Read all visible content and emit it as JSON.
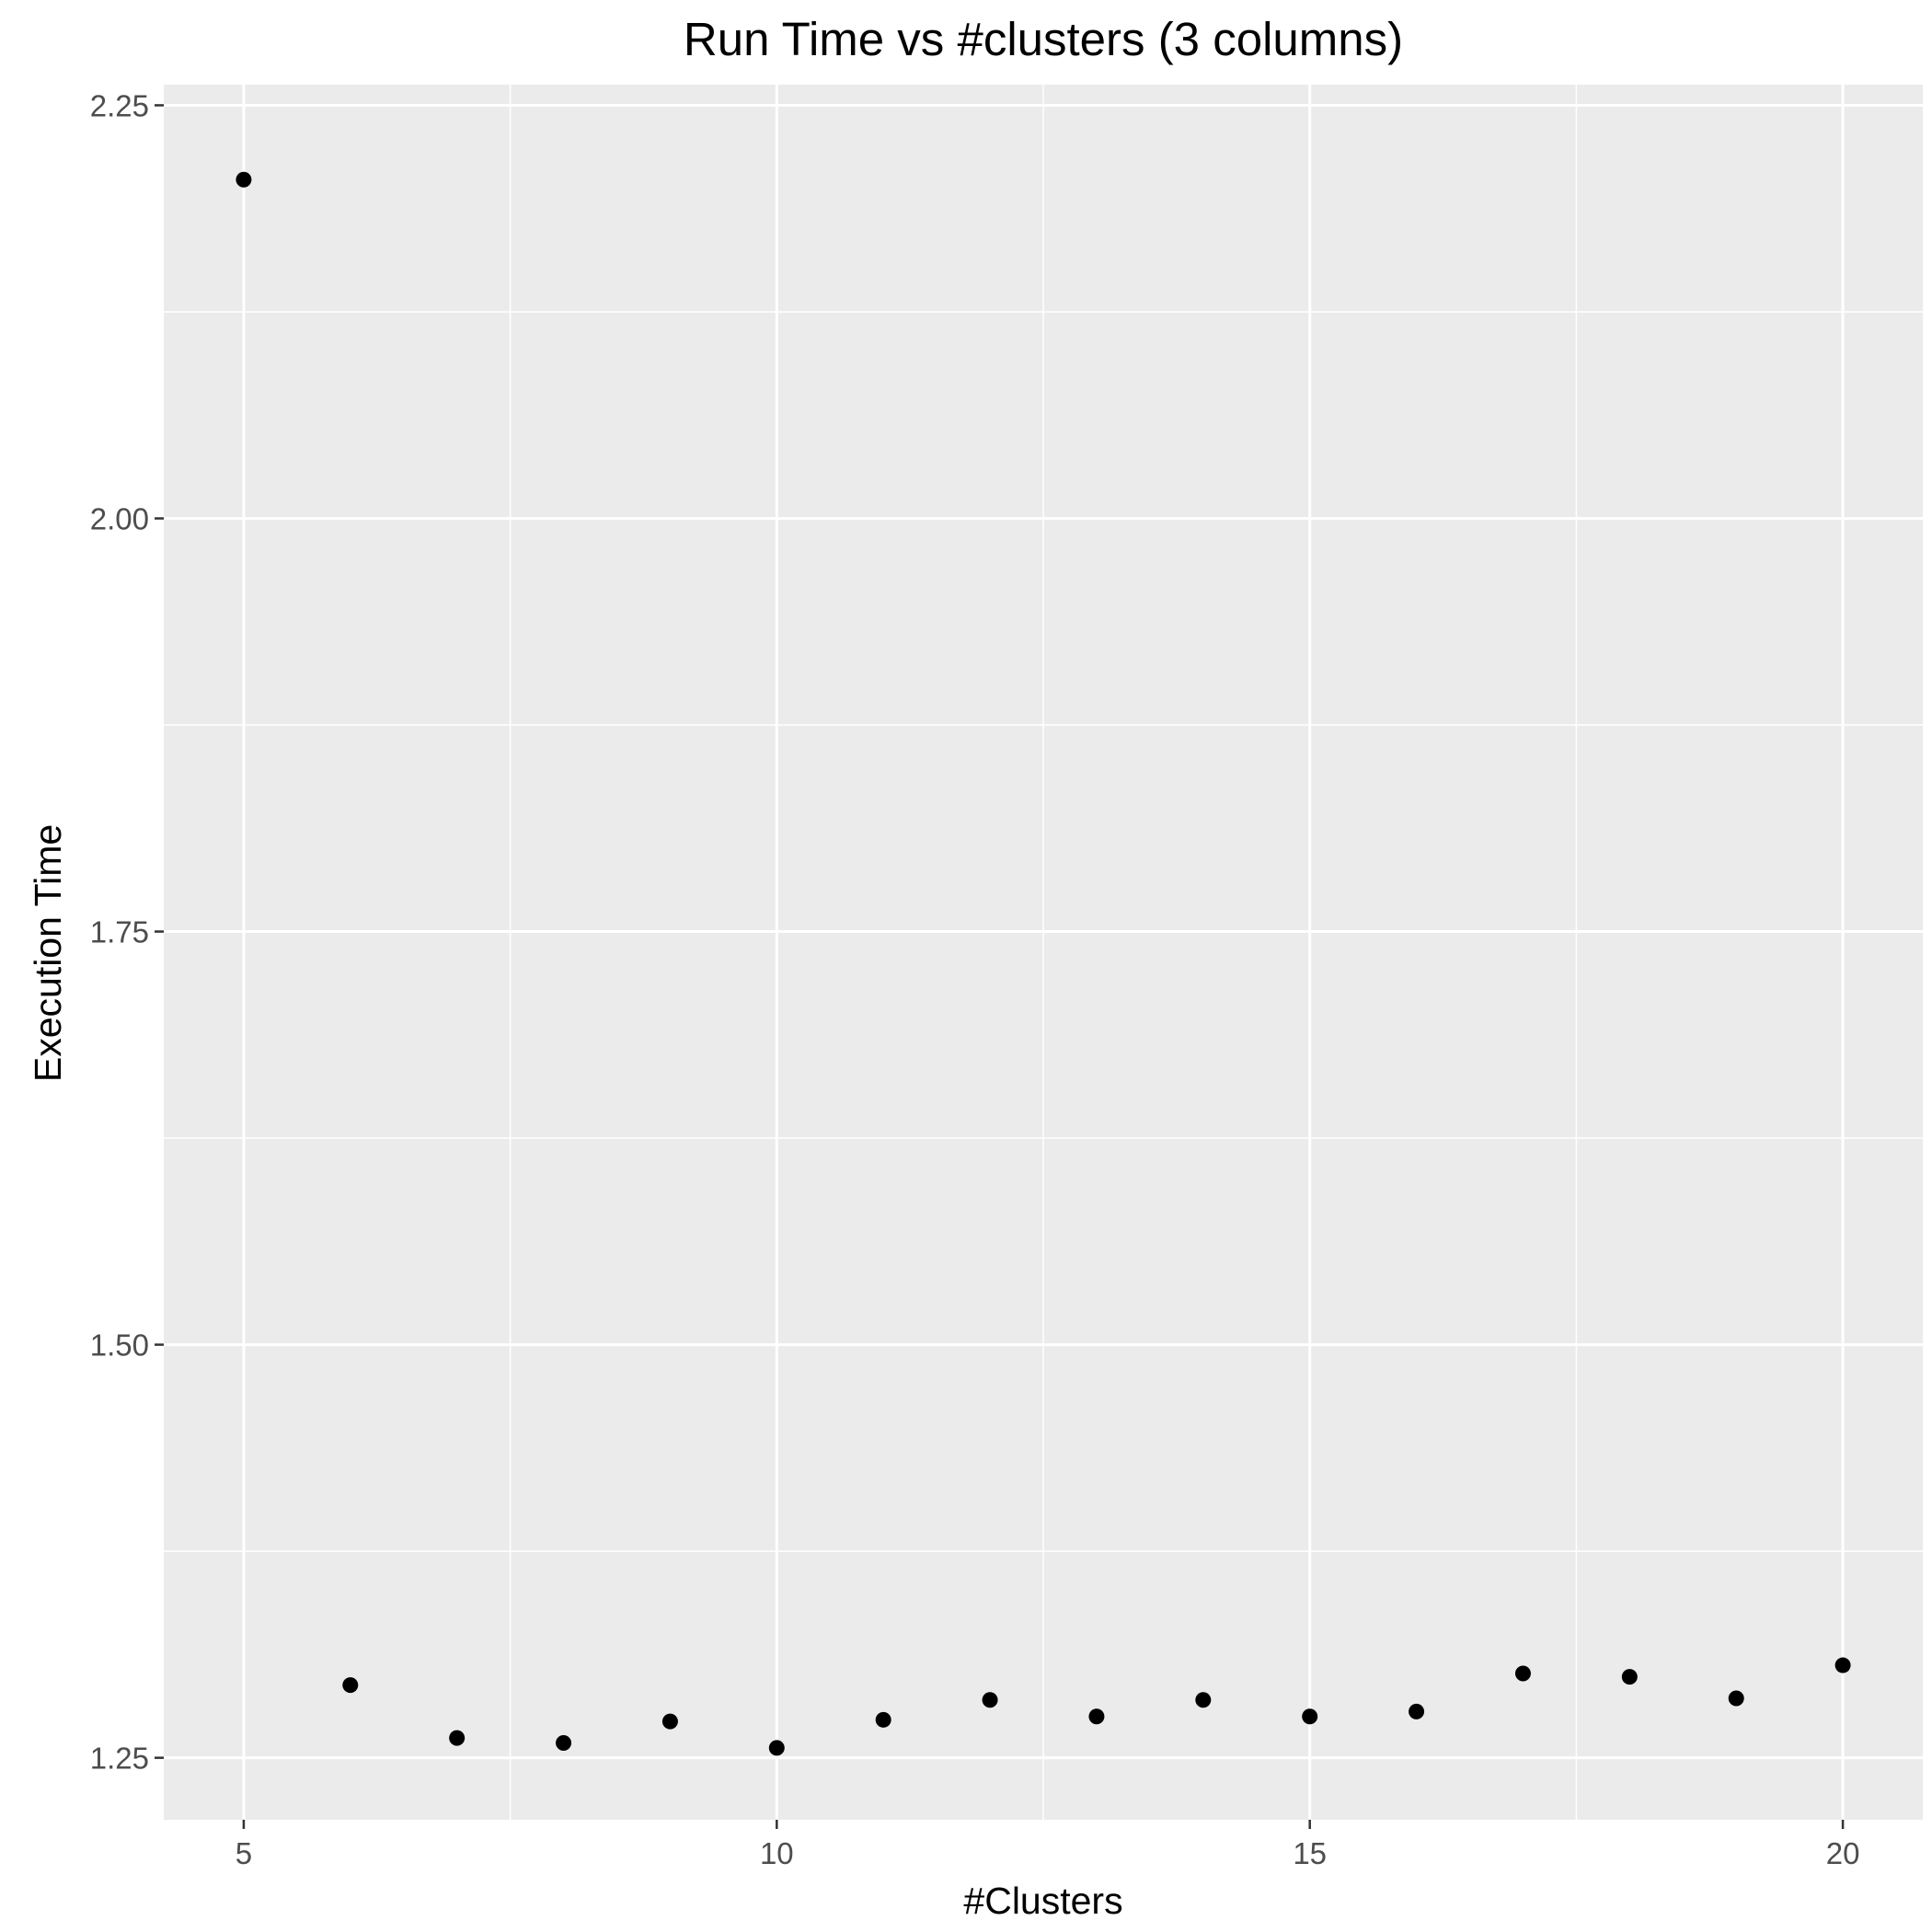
{
  "chart_data": {
    "type": "scatter",
    "title": "Run Time vs #clusters (3 columns)",
    "xlabel": "#Clusters",
    "ylabel": "Execution Time",
    "xlim": [
      4.25,
      20.75
    ],
    "ylim": [
      1.2125,
      2.2625
    ],
    "x_ticks": [
      5,
      10,
      15,
      20
    ],
    "x_tick_labels": [
      "5",
      "10",
      "15",
      "20"
    ],
    "x_minor_ticks": [
      7.5,
      12.5,
      17.5
    ],
    "y_ticks": [
      1.25,
      1.5,
      1.75,
      2.0,
      2.25
    ],
    "y_tick_labels": [
      "1.25",
      "1.50",
      "1.75",
      "2.00",
      "2.25"
    ],
    "y_minor_ticks": [
      1.375,
      1.625,
      1.875,
      2.125
    ],
    "grid": true,
    "panel_color": "#ebebeb",
    "grid_color": "#ffffff",
    "point_color": "#000000",
    "points": [
      {
        "x": 5,
        "y": 2.205
      },
      {
        "x": 6,
        "y": 1.294
      },
      {
        "x": 7,
        "y": 1.262
      },
      {
        "x": 8,
        "y": 1.259
      },
      {
        "x": 9,
        "y": 1.272
      },
      {
        "x": 10,
        "y": 1.256
      },
      {
        "x": 11,
        "y": 1.273
      },
      {
        "x": 12,
        "y": 1.285
      },
      {
        "x": 13,
        "y": 1.275
      },
      {
        "x": 14,
        "y": 1.285
      },
      {
        "x": 15,
        "y": 1.275
      },
      {
        "x": 16,
        "y": 1.278
      },
      {
        "x": 17,
        "y": 1.301
      },
      {
        "x": 18,
        "y": 1.299
      },
      {
        "x": 19,
        "y": 1.286
      },
      {
        "x": 20,
        "y": 1.306
      }
    ]
  }
}
